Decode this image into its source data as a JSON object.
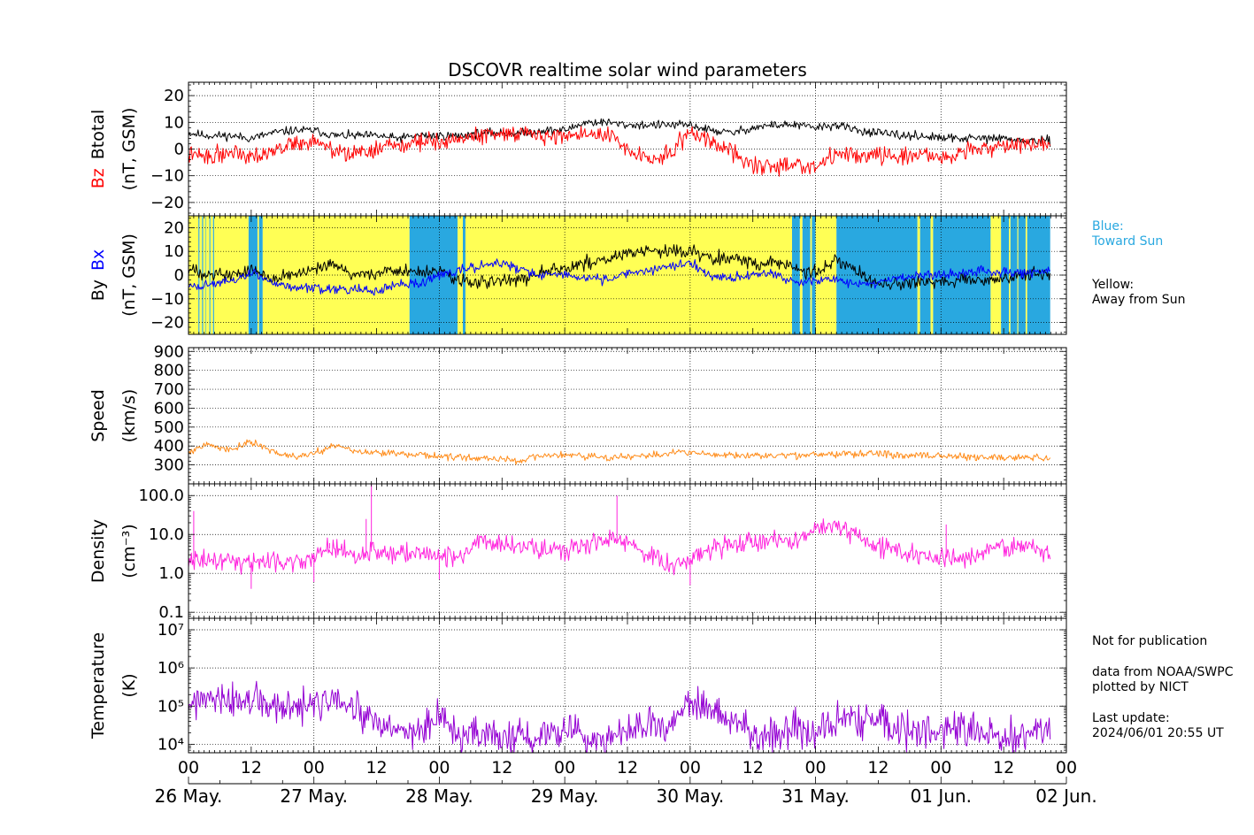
{
  "title": "DSCOVR realtime solar wind parameters",
  "colors": {
    "bz": "#ff0000",
    "btotal": "#000000",
    "bx": "#0000ff",
    "by": "#000000",
    "speed": "#ff8c1a",
    "density": "#ff22dd",
    "temperature": "#9400d3",
    "toward_sun": "#29a8e0",
    "away_sun": "#ffff55"
  },
  "legend": {
    "blue_title": "Blue:",
    "blue_text": "Toward Sun",
    "yellow_title": "Yellow:",
    "yellow_text": "Away from Sun"
  },
  "notes": {
    "not_for_publication": "Not for publication",
    "source_1": "data from NOAA/SWPC",
    "source_2": "plotted by NICT",
    "last_update_label": "Last update:",
    "last_update_value": "2024/06/01 20:55 UT"
  },
  "chart_data": {
    "type": "line",
    "x_axis": {
      "hour_ticks": [
        "00",
        "12",
        "00",
        "12",
        "00",
        "12",
        "00",
        "12",
        "00",
        "12",
        "00",
        "12",
        "00",
        "12",
        "00"
      ],
      "day_ticks": [
        "26 May.",
        "27 May.",
        "28 May.",
        "29 May.",
        "30 May.",
        "31 May.",
        "01 Jun.",
        "02 Jun."
      ],
      "range_hours": [
        0,
        168
      ],
      "last_data_hour": 164.9
    },
    "panels": [
      {
        "id": "mag_bz_bt",
        "ylabel_parts": [
          "Bz",
          "Btotal",
          "(nT, GSM)"
        ],
        "scale": "linear",
        "ylim": [
          -25,
          25
        ],
        "yticks": [
          -20,
          -10,
          0,
          10,
          20
        ],
        "ytick_labels": [
          "−20",
          "−10",
          "0",
          "10",
          "20"
        ],
        "series": [
          {
            "name": "Btotal",
            "color_key": "btotal",
            "x": [
              0,
              4,
              8,
              12,
              16,
              20,
              24,
              28,
              32,
              36,
              40,
              44,
              48,
              52,
              56,
              60,
              64,
              68,
              72,
              76,
              80,
              84,
              88,
              92,
              96,
              100,
              104,
              108,
              112,
              116,
              120,
              124,
              128,
              132,
              136,
              140,
              144,
              148,
              152,
              156,
              160,
              164.9
            ],
            "y": [
              6,
              5,
              5,
              4,
              6,
              7,
              7,
              5,
              5,
              5,
              4,
              5,
              5,
              5,
              6,
              6,
              6,
              7,
              7,
              10,
              10,
              9,
              9,
              9,
              9,
              7,
              6,
              8,
              9,
              9,
              8,
              9,
              7,
              6,
              5,
              5,
              4,
              4,
              4,
              4,
              3,
              3
            ],
            "noise": 0.8,
            "seed": 11
          },
          {
            "name": "Bz",
            "color_key": "bz",
            "x": [
              0,
              4,
              8,
              12,
              16,
              20,
              24,
              28,
              32,
              36,
              40,
              44,
              48,
              52,
              56,
              60,
              64,
              68,
              72,
              76,
              80,
              84,
              88,
              92,
              96,
              100,
              104,
              108,
              112,
              116,
              120,
              124,
              128,
              132,
              136,
              140,
              144,
              148,
              152,
              156,
              160,
              164.9
            ],
            "y": [
              -2,
              -3,
              -1,
              -2,
              -1,
              2,
              3,
              -1,
              -2,
              0,
              1,
              3,
              3,
              4,
              5,
              6,
              6,
              5,
              5,
              6,
              5,
              0,
              -4,
              -2,
              7,
              3,
              -1,
              -6,
              -7,
              -5,
              -7,
              -2,
              -2,
              -2,
              -3,
              -2,
              -3,
              -1,
              1,
              0,
              2,
              2
            ],
            "noise": 1.6,
            "seed": 22
          }
        ]
      },
      {
        "id": "mag_bx_by",
        "ylabel_parts": [
          "By",
          "Bx",
          "(nT, GSM)"
        ],
        "scale": "linear",
        "ylim": [
          -25,
          25
        ],
        "yticks": [
          -20,
          -10,
          0,
          10,
          20
        ],
        "ytick_labels": [
          "−20",
          "−10",
          "0",
          "10",
          "20"
        ],
        "sector_bands": [
          [
            0,
            1.9,
            "away"
          ],
          [
            1.9,
            2.1,
            "toward"
          ],
          [
            2.1,
            2.6,
            "away"
          ],
          [
            2.6,
            2.8,
            "toward"
          ],
          [
            2.8,
            3.3,
            "away"
          ],
          [
            3.3,
            3.4,
            "toward"
          ],
          [
            3.4,
            4.0,
            "away"
          ],
          [
            4.0,
            4.2,
            "toward"
          ],
          [
            4.2,
            4.7,
            "away"
          ],
          [
            4.7,
            4.9,
            "toward"
          ],
          [
            4.9,
            11.5,
            "away"
          ],
          [
            11.5,
            13.2,
            "toward"
          ],
          [
            13.2,
            13.5,
            "away"
          ],
          [
            13.5,
            14.2,
            "toward"
          ],
          [
            14.2,
            42.3,
            "away"
          ],
          [
            42.3,
            51.5,
            "toward"
          ],
          [
            51.5,
            52.5,
            "away"
          ],
          [
            52.5,
            53.0,
            "toward"
          ],
          [
            53.0,
            115.5,
            "away"
          ],
          [
            115.5,
            117.0,
            "toward"
          ],
          [
            117.0,
            117.5,
            "away"
          ],
          [
            117.5,
            119.0,
            "toward"
          ],
          [
            119.0,
            119.3,
            "away"
          ],
          [
            119.3,
            120.0,
            "toward"
          ],
          [
            120.0,
            124.0,
            "away"
          ],
          [
            124.0,
            139.5,
            "toward"
          ],
          [
            139.5,
            140.0,
            "away"
          ],
          [
            140.0,
            142.0,
            "toward"
          ],
          [
            142.0,
            142.5,
            "away"
          ],
          [
            142.5,
            153.5,
            "toward"
          ],
          [
            153.5,
            155.5,
            "away"
          ],
          [
            155.5,
            157.0,
            "toward"
          ],
          [
            157.0,
            157.3,
            "away"
          ],
          [
            157.3,
            158.6,
            "toward"
          ],
          [
            158.6,
            158.8,
            "away"
          ],
          [
            158.8,
            160.2,
            "toward"
          ],
          [
            160.2,
            160.5,
            "away"
          ],
          [
            160.5,
            164.9,
            "toward"
          ]
        ],
        "series": [
          {
            "name": "By",
            "color_key": "by",
            "x": [
              0,
              4,
              8,
              12,
              16,
              20,
              24,
              28,
              32,
              36,
              40,
              44,
              48,
              52,
              56,
              60,
              64,
              68,
              72,
              76,
              80,
              84,
              88,
              92,
              96,
              100,
              104,
              108,
              112,
              116,
              120,
              124,
              128,
              132,
              136,
              140,
              144,
              148,
              152,
              156,
              160,
              164.9
            ],
            "y": [
              2,
              1,
              0,
              2,
              -1,
              0,
              2,
              4,
              0,
              1,
              2,
              1,
              2,
              -3,
              -3,
              -3,
              -1,
              2,
              3,
              5,
              7,
              9,
              10,
              10,
              10,
              8,
              7,
              5,
              5,
              3,
              1,
              6,
              1,
              -4,
              -4,
              -3,
              -3,
              -2,
              -2,
              -2,
              0,
              1
            ],
            "noise": 1.4,
            "seed": 33
          },
          {
            "name": "Bx",
            "color_key": "bx",
            "x": [
              0,
              4,
              8,
              12,
              16,
              20,
              24,
              28,
              32,
              36,
              40,
              44,
              48,
              52,
              56,
              60,
              64,
              68,
              72,
              76,
              80,
              84,
              88,
              92,
              96,
              100,
              104,
              108,
              112,
              116,
              120,
              124,
              128,
              132,
              136,
              140,
              144,
              148,
              152,
              156,
              160,
              164.9
            ],
            "y": [
              -5,
              -4,
              -3,
              1,
              -3,
              -5,
              -6,
              -6,
              -6,
              -7,
              -4,
              -4,
              0,
              2,
              4,
              5,
              2,
              0,
              0,
              -1,
              -2,
              1,
              2,
              4,
              5,
              0,
              -1,
              0,
              1,
              -3,
              -2,
              -2,
              -4,
              -3,
              -1,
              0,
              0,
              1,
              2,
              1,
              1,
              2
            ],
            "noise": 1.0,
            "seed": 44
          }
        ]
      },
      {
        "id": "speed",
        "ylabel_parts": [
          "Speed",
          "(km/s)"
        ],
        "scale": "linear",
        "ylim": [
          200,
          920
        ],
        "yticks": [
          300,
          400,
          500,
          600,
          700,
          800,
          900
        ],
        "ytick_labels": [
          "300",
          "400",
          "500",
          "600",
          "700",
          "800",
          "900"
        ],
        "series": [
          {
            "name": "Speed",
            "color_key": "speed",
            "x": [
              0,
              4,
              8,
              12,
              16,
              20,
              24,
              28,
              32,
              36,
              40,
              44,
              48,
              52,
              56,
              60,
              64,
              68,
              72,
              76,
              80,
              84,
              88,
              92,
              96,
              100,
              104,
              108,
              112,
              116,
              120,
              124,
              128,
              132,
              136,
              140,
              144,
              148,
              152,
              156,
              160,
              164.9
            ],
            "y": [
              370,
              410,
              380,
              420,
              370,
              345,
              360,
              410,
              370,
              365,
              360,
              355,
              345,
              340,
              335,
              330,
              320,
              350,
              350,
              345,
              340,
              345,
              350,
              360,
              365,
              355,
              350,
              345,
              350,
              350,
              355,
              355,
              360,
              360,
              350,
              355,
              345,
              345,
              340,
              340,
              340,
              335
            ],
            "noise": 9,
            "seed": 55
          }
        ]
      },
      {
        "id": "density",
        "ylabel_parts": [
          "Density",
          "(cm⁻³)"
        ],
        "scale": "log",
        "ylim": [
          0.07,
          200
        ],
        "yticks": [
          0.1,
          1.0,
          10.0,
          100.0
        ],
        "ytick_labels": [
          "0.1",
          "1.0",
          "10.0",
          "100.0"
        ],
        "series": [
          {
            "name": "Density",
            "color_key": "density",
            "x": [
              0,
              4,
              8,
              12,
              16,
              20,
              24,
              28,
              32,
              36,
              40,
              44,
              48,
              52,
              56,
              60,
              64,
              68,
              72,
              76,
              80,
              84,
              88,
              92,
              96,
              100,
              104,
              108,
              112,
              116,
              120,
              124,
              128,
              132,
              136,
              140,
              144,
              148,
              152,
              156,
              160,
              164.9
            ],
            "y": [
              2.5,
              2.0,
              2.2,
              2.0,
              2.2,
              2.0,
              2.3,
              5.0,
              2.5,
              4.0,
              3.0,
              3.5,
              2.5,
              3.0,
              7.0,
              6.0,
              5.0,
              4.0,
              3.5,
              6.0,
              7.0,
              6.0,
              3.0,
              1.5,
              2.5,
              4.0,
              6.0,
              7.0,
              7.0,
              6.0,
              15.0,
              20.0,
              8.0,
              5.0,
              4.0,
              3.0,
              2.5,
              2.5,
              3.0,
              5.0,
              5.0,
              3.5
            ],
            "noise": 0.25,
            "seed": 66,
            "spikes": [
              [
                1.0,
                40
              ],
              [
                12,
                0.4
              ],
              [
                24,
                0.6
              ],
              [
                27,
                6
              ],
              [
                34,
                25
              ],
              [
                35,
                200
              ],
              [
                48,
                0.7
              ],
              [
                82,
                100
              ],
              [
                96,
                0.5
              ],
              [
                145,
                18
              ]
            ]
          }
        ]
      },
      {
        "id": "temperature",
        "ylabel_parts": [
          "Temperature",
          "(K)"
        ],
        "scale": "log",
        "ylim": [
          6000,
          20000000
        ],
        "yticks": [
          10000,
          100000,
          1000000,
          10000000
        ],
        "ytick_labels": [
          "10⁴",
          "10⁵",
          "10⁶",
          "10⁷"
        ],
        "series": [
          {
            "name": "Temperature",
            "color_key": "temperature",
            "x": [
              0,
              4,
              8,
              12,
              16,
              20,
              24,
              28,
              32,
              36,
              40,
              44,
              48,
              52,
              56,
              60,
              64,
              68,
              72,
              76,
              80,
              84,
              88,
              92,
              96,
              100,
              104,
              108,
              112,
              116,
              120,
              124,
              128,
              132,
              136,
              140,
              144,
              148,
              152,
              156,
              160,
              164.9
            ],
            "y": [
              120000,
              140000,
              120000,
              150000,
              90000,
              80000,
              110000,
              130000,
              70000,
              30000,
              20000,
              25000,
              40000,
              15000,
              18000,
              16000,
              14000,
              18000,
              30000,
              16000,
              14000,
              20000,
              30000,
              20000,
              120000,
              80000,
              50000,
              15000,
              18000,
              30000,
              15000,
              40000,
              45000,
              35000,
              25000,
              22000,
              20000,
              25000,
              18000,
              14000,
              20000,
              25000
            ],
            "noise": 0.45,
            "seed": 77
          }
        ]
      }
    ]
  }
}
